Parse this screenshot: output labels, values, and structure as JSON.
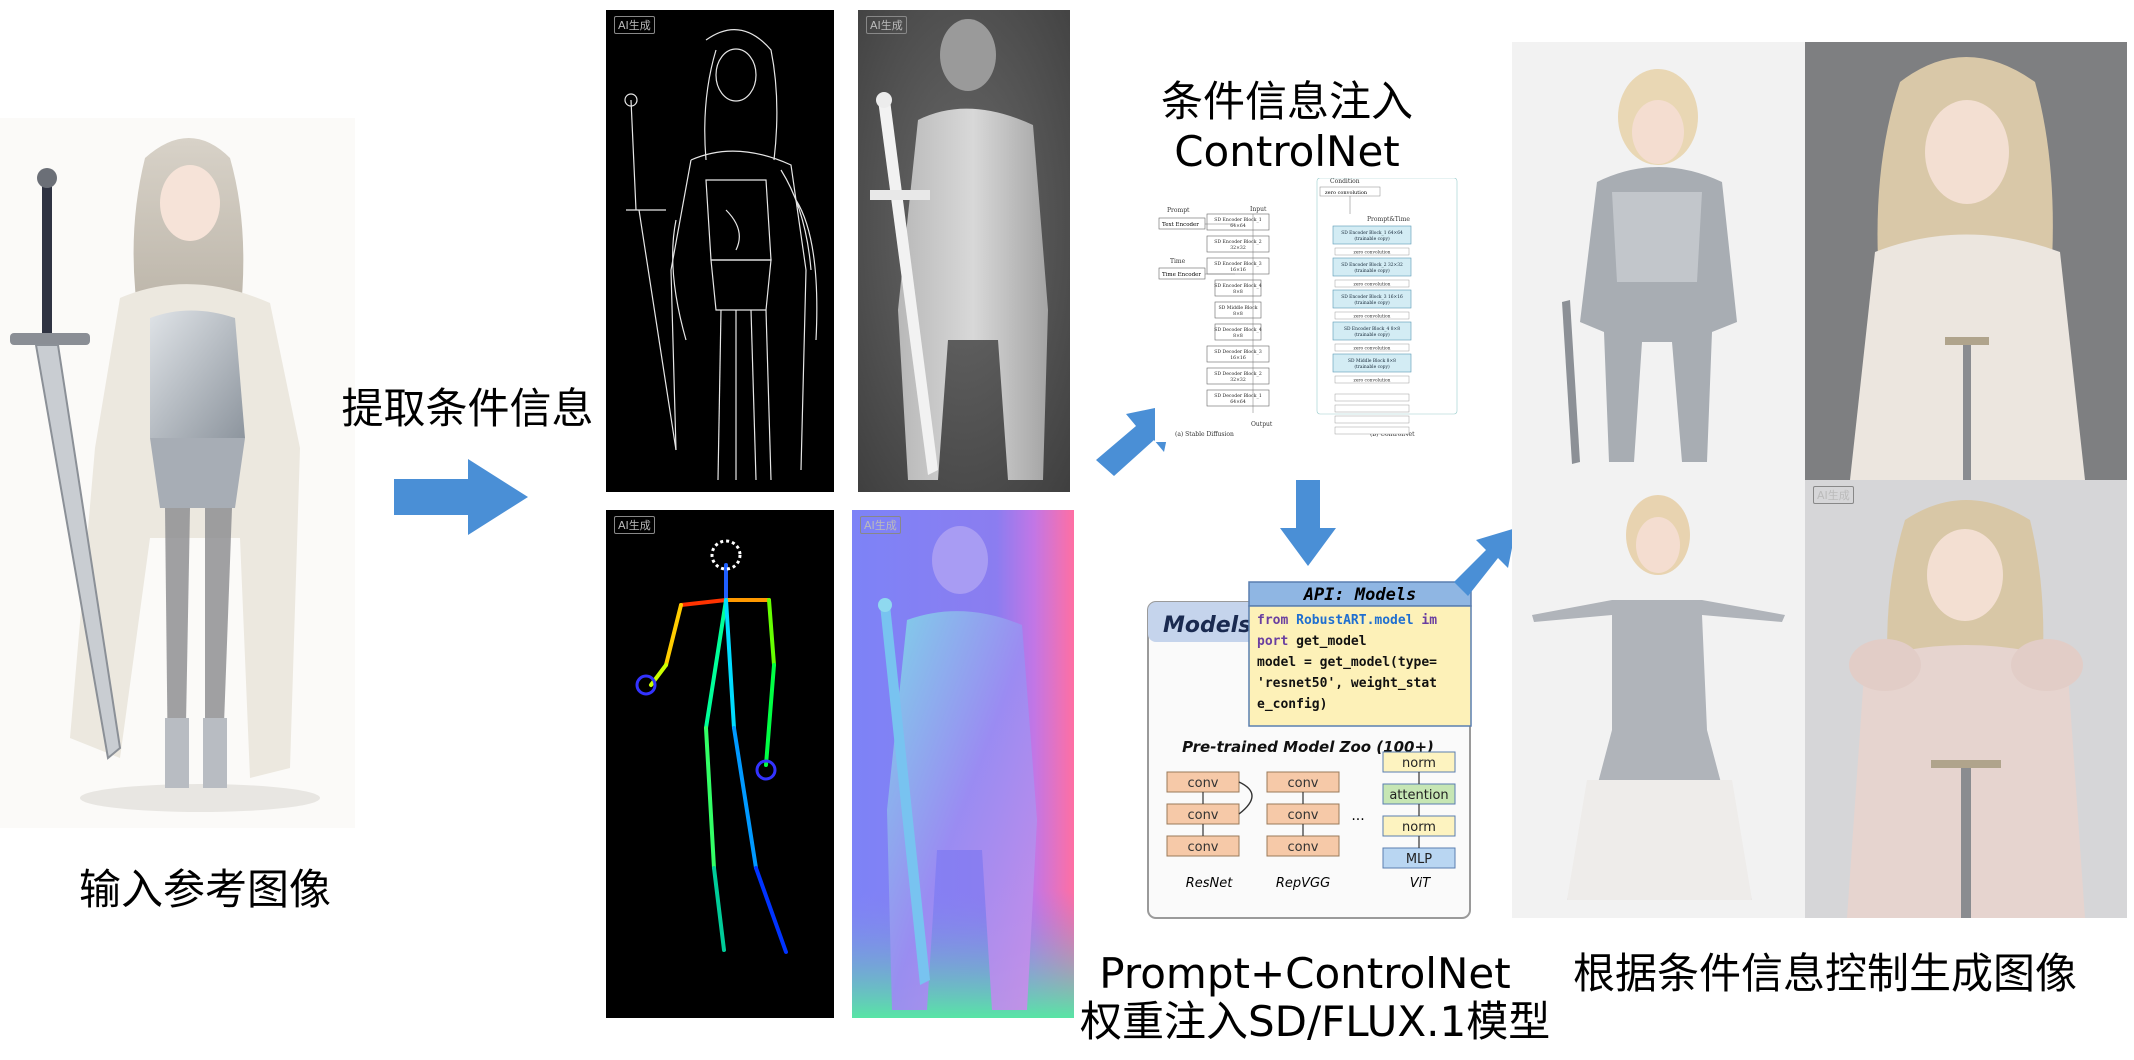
{
  "captions": {
    "input_reference": "输入参考图像",
    "extract_conditions": "提取条件信息",
    "inject_title_line1": "条件信息注入",
    "inject_title_line2": "ControlNet",
    "weights_line1": "Prompt+ControlNet",
    "weights_line2": "权重注入SD/FLUX.1模型",
    "generate_output": "根据条件信息控制生成图像"
  },
  "ai_badge": "AI生成",
  "controlnet_diagram": {
    "condition": "Condition",
    "prompt": "Prompt",
    "input": "Input",
    "time": "Time",
    "prompt_time": "Prompt&Time",
    "text_encoder": "Text Encoder",
    "time_encoder": "Time Encoder",
    "output": "Output",
    "zero_conv": "zero convolution",
    "caption_a": "(a) Stable Diffusion",
    "caption_b": "(b) ControlNet",
    "sd_blocks": [
      "SD Encoder Block_1 64×64",
      "SD Encoder Block_2 32×32",
      "SD Encoder Block_3 16×16",
      "SD Encoder Block_4 8×8",
      "SD Middle Block 8×8",
      "SD Decoder Block_4 8×8",
      "SD Decoder Block_3 16×16",
      "SD Decoder Block_2 32×32",
      "SD Decoder Block_1 64×64"
    ],
    "copy_blocks": [
      "SD Encoder Block_1 64×64 (trainable copy)",
      "SD Encoder Block_2 32×32 (trainable copy)",
      "SD Encoder Block_3 16×16 (trainable copy)",
      "SD Encoder Block_4 8×8 (trainable copy)",
      "SD Middle Block 8×8 (trainable copy)"
    ]
  },
  "models_diagram": {
    "tab_label": "Models",
    "api_title": "API: Models",
    "code_lines": [
      [
        "from ",
        "RobustART.model",
        " im"
      ],
      [
        "port",
        " get_model",
        ""
      ],
      [
        "model = get_model(type=",
        "",
        ""
      ],
      [
        "'resnet50', weight_stat",
        "",
        ""
      ],
      [
        "e_config)",
        "",
        ""
      ]
    ],
    "zoo_title": "Pre-trained Model Zoo (100+)",
    "resnet_label": "ResNet",
    "repvgg_label": "RepVGG",
    "vit_label": "ViT",
    "conv": "conv",
    "ellipsis": "...",
    "vit_blocks": [
      "norm",
      "attention",
      "norm",
      "MLP"
    ]
  },
  "colors": {
    "arrow_blue": "#4a8fd6",
    "api_header": "#8fb6e3",
    "api_body": "#fdf1b8",
    "conv_fill": "#f6c9a8",
    "norm_fill": "#fdf3c0",
    "attention_fill": "#c6e6b4",
    "mlp_fill": "#b9d6f2"
  }
}
